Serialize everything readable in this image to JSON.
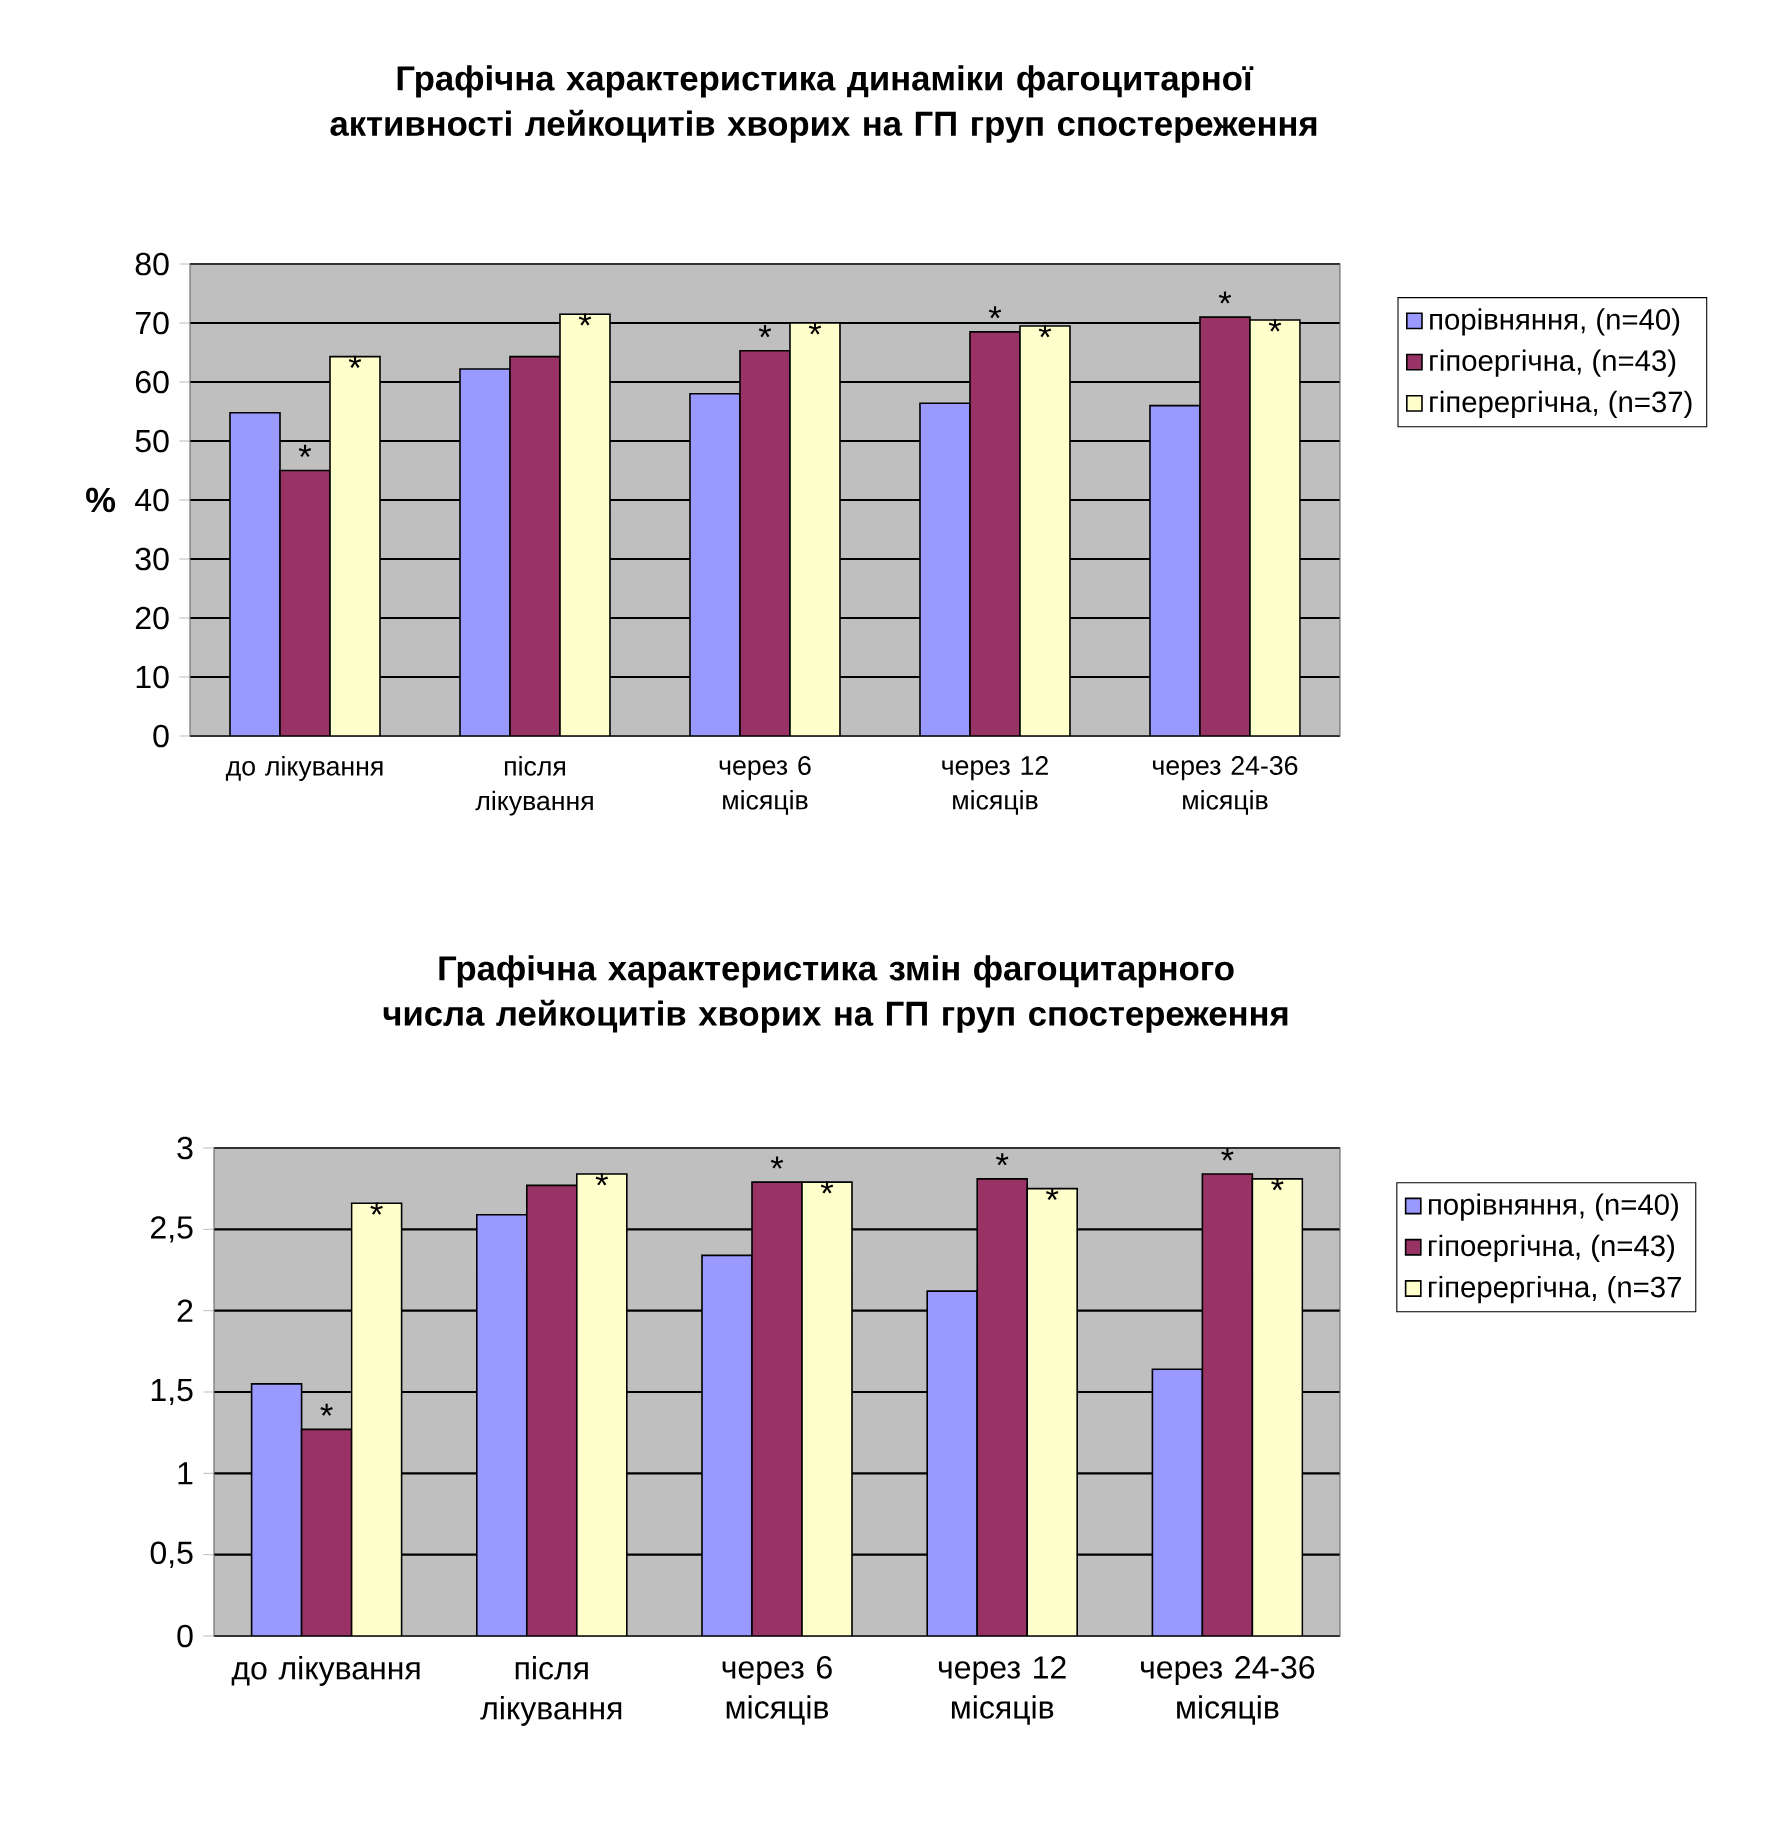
{
  "chart_data": [
    {
      "type": "bar",
      "title": "Графічна характеристика динаміки фагоцитарної активності лейкоцитів хворих на ГП груп спостереження",
      "ylabel": "%",
      "categories": [
        "до лікування",
        "після лікування",
        "через 6 місяців",
        "через 12 місяців",
        "через 24-36 місяців"
      ],
      "series": [
        {
          "name": "порівняння, (n=40)",
          "color": "#9999ff",
          "values": [
            54.8,
            62.2,
            58,
            56.4,
            56
          ]
        },
        {
          "name": "гіпоергічна, (n=43)",
          "color": "#993366",
          "values": [
            45,
            64.3,
            65.3,
            68.5,
            71
          ]
        },
        {
          "name": "гіперергічна, (n=37)",
          "color": "#ffffcc",
          "values": [
            64.3,
            71.5,
            70,
            69.5,
            70.5
          ]
        }
      ],
      "ylim": [
        0,
        80
      ],
      "yticks": [
        0,
        10,
        20,
        30,
        40,
        50,
        60,
        70,
        80
      ],
      "grid": "y",
      "legend": "right",
      "annotations": [
        {
          "text": "*",
          "x": "до лікування",
          "y": 45
        },
        {
          "text": "*",
          "y": 64.3
        },
        {
          "text": "*",
          "y": 71.5
        },
        {
          "text": "*",
          "x": "через 6 місяців",
          "y": 65.3
        },
        {
          "text": "*",
          "y": 70
        },
        {
          "text": "*",
          "x": "через 12 місяців",
          "y": 68.5
        },
        {
          "text": "*",
          "x": "через 12 місяців",
          "y": 69.5
        },
        {
          "text": "*",
          "x": "через 24-36 місяців",
          "y": 71
        },
        {
          "text": "*",
          "x": "через 24-36 місяців",
          "y": 70.5
        }
      ]
    },
    {
      "type": "bar",
      "title": "Графічна характеристика змін фагоцитарного числа лейкоцитів хворих на ГП груп спостереження",
      "categories": [
        "до лікування",
        "після лікування",
        "через 6 місяців",
        "через 12 місяців",
        "через 24-36 місяців"
      ],
      "series": [
        {
          "name": "порівняння, (n=40)",
          "color": "#9999ff",
          "values": [
            1.55,
            2.59,
            2.34,
            2.12,
            1.64
          ]
        },
        {
          "name": "гіпоергічна, (n=43)",
          "color": "#993366",
          "values": [
            1.27,
            2.77,
            2.79,
            2.81,
            2.84
          ]
        },
        {
          "name": "гіперергічна, (n=37",
          "color": "#ffffcc",
          "values": [
            2.66,
            2.84,
            2.79,
            2.75,
            2.81
          ]
        }
      ],
      "ylim": [
        0,
        3
      ],
      "yticks": [
        0,
        {
          "value": 0.5,
          "label": "0,5"
        },
        1,
        {
          "value": 1.5,
          "label": "1,5"
        },
        2,
        {
          "value": 2.5,
          "label": "2,5"
        },
        3
      ],
      "grid": "y",
      "legend": "right",
      "annotations": [
        {
          "text": "*",
          "x": "до лікування",
          "y": 1.27
        },
        {
          "text": "*",
          "y": 2.66
        },
        {
          "text": "*",
          "y": 2.84
        },
        {
          "text": "*",
          "x": "через 6 місяців",
          "y": 2.79
        },
        {
          "text": "*",
          "x": "через 6 місяців",
          "y": 2.79
        },
        {
          "text": "*",
          "x": "через 12 місяців",
          "y": 2.81
        },
        {
          "text": "*",
          "x": "через 12 місяців",
          "y": 2.75
        },
        {
          "text": "*",
          "x": "через 24-36 місяців",
          "y": 2.84
        },
        {
          "text": "*",
          "x": "через 24-36 місяців",
          "y": 2.81
        }
      ]
    }
  ]
}
